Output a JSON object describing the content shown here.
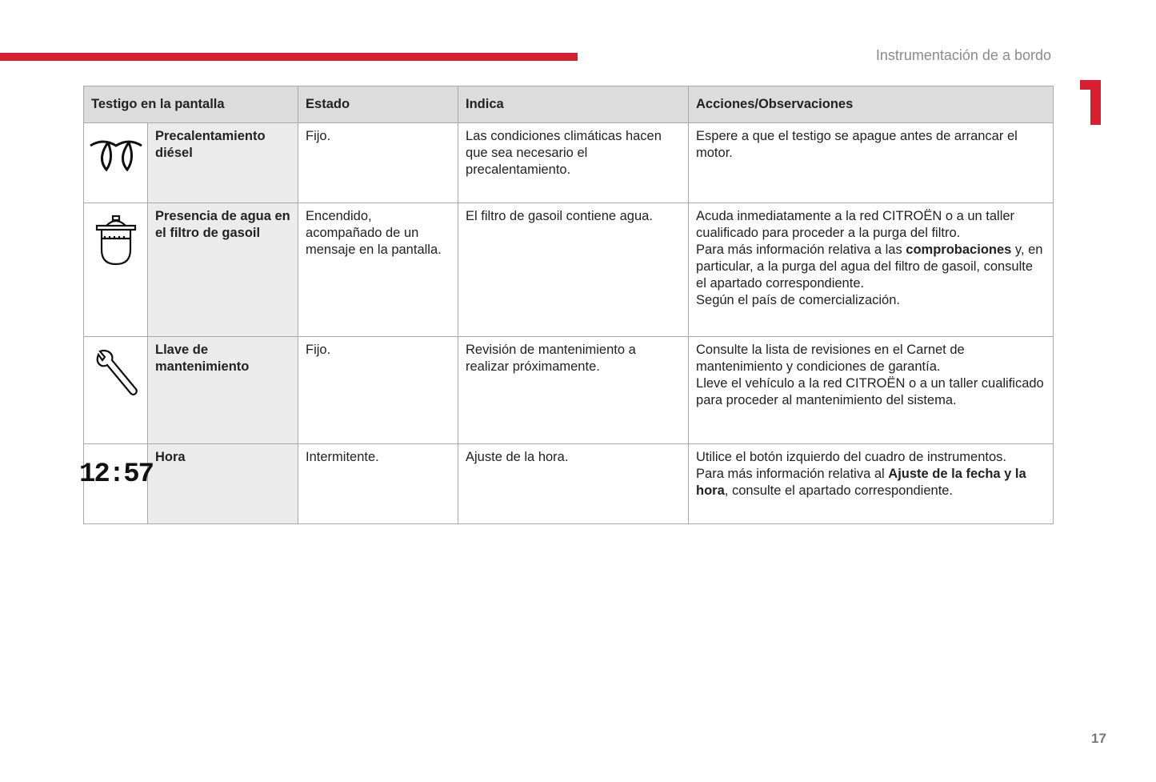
{
  "header": {
    "section_title": "Instrumentación de a bordo",
    "chapter_number": "1",
    "accent_color": "#d71f30"
  },
  "table": {
    "columns": [
      "Testigo en la pantalla",
      "Estado",
      "Indica",
      "Acciones/Observaciones"
    ],
    "rows": [
      {
        "icon": "glow-plug-icon",
        "name": "Precalentamiento diésel",
        "estado": "Fijo.",
        "indica": "Las condiciones climáticas hacen que sea necesario el precalentamiento.",
        "acciones": [
          [
            {
              "t": "Espere a que el testigo se apague antes de arrancar el motor."
            }
          ]
        ]
      },
      {
        "icon": "water-in-fuel-filter-icon",
        "name": "Presencia de agua en el filtro de gasoil",
        "estado": "Encendido, acompañado de un mensaje en la pantalla.",
        "indica": "El filtro de gasoil contiene agua.",
        "acciones": [
          [
            {
              "t": "Acuda inmediatamente a la red CITROËN o a un taller cualificado para proceder a la purga del filtro."
            }
          ],
          [
            {
              "t": "Para más información relativa a las "
            },
            {
              "t": "comprobaciones",
              "b": true
            },
            {
              "t": " y, en particular, a la purga del agua del filtro de gasoil, consulte el apartado correspondiente."
            }
          ],
          [
            {
              "t": "Según el país de comercialización."
            }
          ]
        ]
      },
      {
        "icon": "wrench-icon",
        "name": "Llave de mantenimiento",
        "estado": "Fijo.",
        "indica": "Revisión de mantenimiento a realizar próximamente.",
        "acciones": [
          [
            {
              "t": "Consulte la lista de revisiones en el Carnet de mantenimiento y condiciones de garantía."
            }
          ],
          [
            {
              "t": "Lleve el vehículo a la red CITROËN o a un taller cualificado para proceder al mantenimiento del sistema."
            }
          ]
        ]
      },
      {
        "icon": "clock-display-icon",
        "icon_text": "12:57",
        "name": "Hora",
        "estado": "Intermitente.",
        "indica": "Ajuste de la hora.",
        "acciones": [
          [
            {
              "t": "Utilice el botón izquierdo del cuadro de instrumentos."
            }
          ],
          [
            {
              "t": "Para más información relativa al "
            },
            {
              "t": "Ajuste de la fecha y la hora",
              "b": true
            },
            {
              "t": ", consulte el apartado correspondiente."
            }
          ]
        ]
      }
    ]
  },
  "footer": {
    "page_number": "17"
  }
}
